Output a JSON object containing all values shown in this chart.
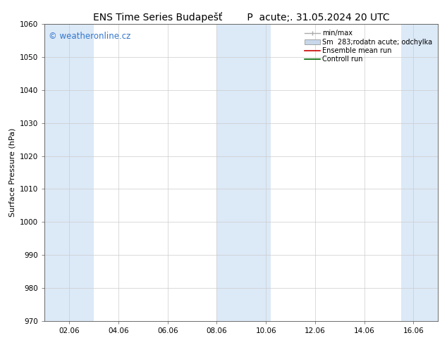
{
  "title": "ENS Time Series Budapešť        P  acute;. 31.05.2024 20 UTC",
  "ylabel": "Surface Pressure (hPa)",
  "ylim": [
    970,
    1060
  ],
  "yticks": [
    970,
    980,
    990,
    1000,
    1010,
    1020,
    1030,
    1040,
    1050,
    1060
  ],
  "xtick_positions": [
    1,
    3,
    5,
    7,
    9,
    11,
    13,
    15
  ],
  "xtick_labels": [
    "02.06",
    "04.06",
    "06.06",
    "08.06",
    "10.06",
    "12.06",
    "14.06",
    "16.06"
  ],
  "xlim": [
    0,
    16
  ],
  "background_color": "#ffffff",
  "plot_bg_color": "#ffffff",
  "shaded_bands": [
    {
      "x_start": -0.2,
      "x_end": 2.0,
      "color": "#dce9f7"
    },
    {
      "x_start": 7.0,
      "x_end": 9.2,
      "color": "#dce9f7"
    },
    {
      "x_start": 14.5,
      "x_end": 16.2,
      "color": "#dce9f7"
    }
  ],
  "watermark_text": "© weatheronline.cz",
  "watermark_color": "#3377cc",
  "watermark_fontsize": 8.5,
  "legend_items": [
    {
      "label": "min/max",
      "type": "errorbar",
      "color": "#aaaaaa"
    },
    {
      "label": "Sm  283;rodatn acute; odchylka",
      "type": "band",
      "color": "#c8d8ea"
    },
    {
      "label": "Ensemble mean run",
      "type": "line",
      "color": "#cc0000"
    },
    {
      "label": "Controll run",
      "type": "line",
      "color": "#006600"
    }
  ],
  "title_fontsize": 10,
  "axis_label_fontsize": 8,
  "tick_fontsize": 7.5,
  "legend_fontsize": 7
}
